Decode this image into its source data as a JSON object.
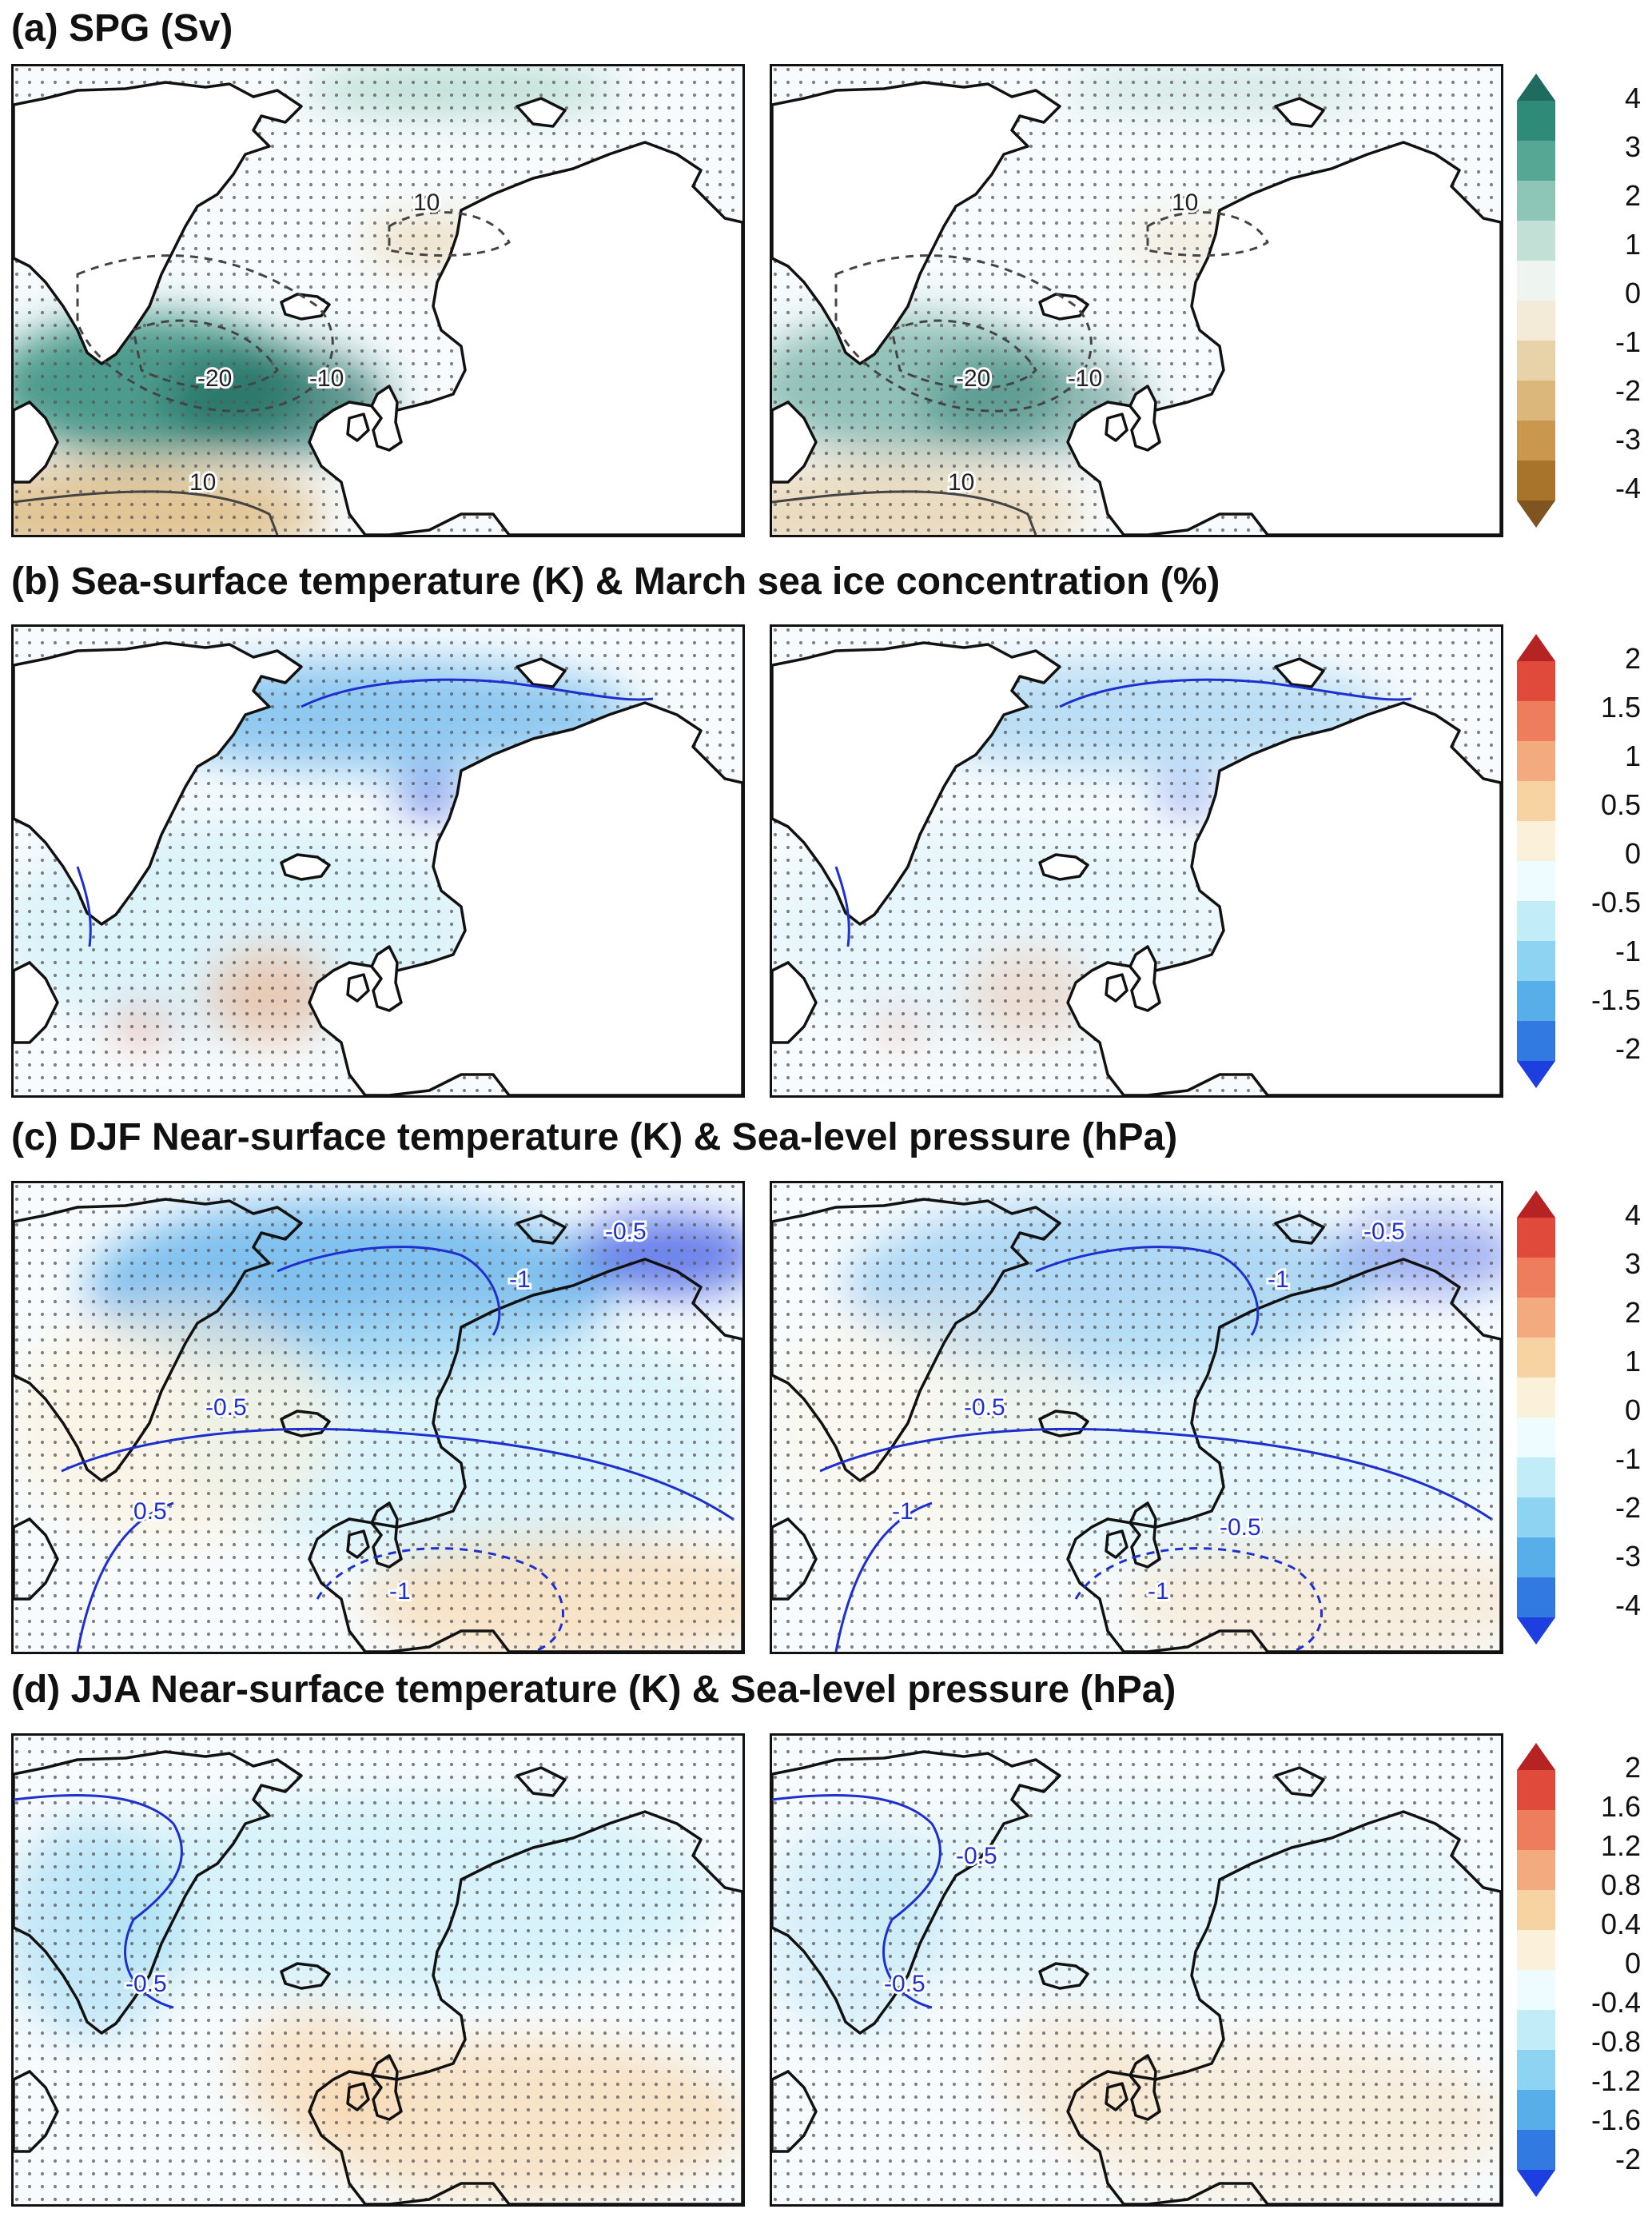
{
  "sections": [
    {
      "title": "(a)  SPG (Sv)",
      "colorbar_ticks": [
        "4",
        "3",
        "2",
        "1",
        "0",
        "-1",
        "-2",
        "-3",
        "-4"
      ],
      "colorbar_colors": [
        "#1f6b5f",
        "#2f8a78",
        "#56a895",
        "#8dc6b6",
        "#c2e0d6",
        "#eef4f0",
        "#f3ead8",
        "#e8d2a8",
        "#dbb77b",
        "#c9974d",
        "#a8732b",
        "#7f5420"
      ],
      "contour_labels_left": [
        "10",
        "-20",
        "-10",
        "10"
      ],
      "contour_labels_right": [
        "10",
        "-20",
        "-10",
        "10"
      ],
      "palette": "teal-brown"
    },
    {
      "title": "(b)  Sea-surface temperature (K) & March sea ice concentration (%)",
      "colorbar_ticks": [
        "2",
        "1.5",
        "1",
        "0.5",
        "0",
        "-0.5",
        "-1",
        "-1.5",
        "-2"
      ],
      "colorbar_colors": [
        "#b52323",
        "#e04a3a",
        "#ee7d5e",
        "#f3aa7e",
        "#f7d2a3",
        "#fbf0d9",
        "#eefcff",
        "#c2ecf8",
        "#8fd3f2",
        "#58aee9",
        "#3379e2",
        "#1d3fe0"
      ],
      "palette": "blue-red"
    },
    {
      "title": "(c)  DJF Near-surface temperature (K) & Sea-level pressure (hPa)",
      "colorbar_ticks": [
        "4",
        "3",
        "2",
        "1",
        "0",
        "-1",
        "-2",
        "-3",
        "-4"
      ],
      "colorbar_colors": [
        "#b52323",
        "#e04a3a",
        "#ee7d5e",
        "#f3aa7e",
        "#f7d2a3",
        "#fbf0d9",
        "#eefcff",
        "#c2ecf8",
        "#8fd3f2",
        "#58aee9",
        "#3379e2",
        "#1d3fe0"
      ],
      "contour_labels_left": [
        "-1",
        "-0.5",
        "-0.5",
        "0.5",
        "-1"
      ],
      "contour_labels_right": [
        "-1",
        "-0.5",
        "-0.5",
        "-1",
        "-1",
        "-0.5"
      ],
      "palette": "blue-red"
    },
    {
      "title": "(d)  JJA Near-surface temperature (K) & Sea-level pressure (hPa)",
      "colorbar_ticks": [
        "2",
        "1.6",
        "1.2",
        "0.8",
        "0.4",
        "0",
        "-0.4",
        "-0.8",
        "-1.2",
        "-1.6",
        "-2"
      ],
      "colorbar_colors": [
        "#b52323",
        "#e04a3a",
        "#ee7d5e",
        "#f3aa7e",
        "#f7d2a3",
        "#fbf0d9",
        "#eefcff",
        "#c2ecf8",
        "#8fd3f2",
        "#58aee9",
        "#3379e2",
        "#1d3fe0"
      ],
      "contour_labels_left": [
        "-0.5"
      ],
      "contour_labels_right": [
        "-0.5",
        "-0.5"
      ],
      "palette": "blue-red"
    }
  ]
}
